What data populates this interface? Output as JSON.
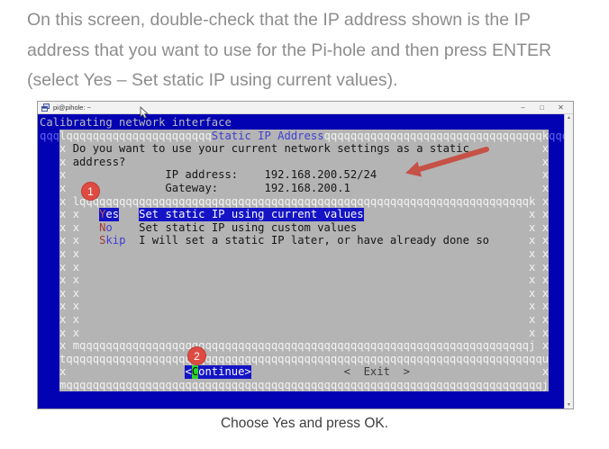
{
  "intro": {
    "lines": [
      "On this screen, double-check that the IP address shown is the IP",
      "address that you want to use for the Pi-hole and then press ENTER",
      "(select Yes – Set static IP using current values)."
    ]
  },
  "caption": "Choose Yes and press OK.",
  "window": {
    "title": "pi@pihole: ~",
    "controls": {
      "minimize": "–",
      "maximize": "□",
      "close": "✕"
    },
    "scrollbar": {
      "up": "▲",
      "down": "▼"
    }
  },
  "colors": {
    "terminal_blue": "#0202b2",
    "dialog_gray": "#b4b4b4",
    "highlight_blue": "#1414c6",
    "title_blue": "#3f3fd3",
    "hotkey_red": "#a43835",
    "cursor_green": "#2ed32e",
    "annotation_red": "#dd4b43"
  },
  "terminal": {
    "backtitle": "Calibrating network interface",
    "dialog_title": "Static IP Address",
    "question": "Do you want to use your current network settings as a static address?",
    "ip_label": "IP address:",
    "ip_value": "192.168.200.52/24",
    "gateway_label": "Gateway:",
    "gateway_value": "192.168.200.1",
    "options": [
      {
        "tag": "Yes",
        "desc": "Set static IP using current values",
        "selected": true
      },
      {
        "tag": "No",
        "desc": "Set static IP using custom values",
        "selected": false
      },
      {
        "tag": "Skip",
        "desc": "I will set a static IP later, or have already done so",
        "selected": false
      }
    ],
    "buttons": [
      "<Continue>",
      "<  Exit  >"
    ],
    "lines": [
      [
        {
          "t": "Calibrating network interface",
          "c": "g"
        }
      ],
      [
        {
          "t": "qqq",
          "c": "lb"
        },
        {
          "t": "l",
          "c": "bw"
        },
        {
          "q": 22,
          "c": "bw"
        },
        {
          "t": "Static IP Address",
          "c": "bt",
          "n": "dialog-title"
        },
        {
          "q": 33,
          "c": "bw"
        },
        {
          "t": "k",
          "c": "bw"
        },
        {
          "t": "qqq",
          "c": "lb"
        }
      ],
      [
        {
          "s": 3
        },
        {
          "t": "x",
          "c": "bw"
        },
        {
          "t": " Do you want to use your current network settings as a static",
          "c": "k"
        },
        {
          "s": 11,
          "c": "k"
        },
        {
          "t": "x",
          "c": "bw"
        }
      ],
      [
        {
          "s": 3
        },
        {
          "t": "x",
          "c": "bw"
        },
        {
          "t": " address?",
          "c": "k"
        },
        {
          "s": 63,
          "c": "k"
        },
        {
          "t": "x",
          "c": "bw"
        }
      ],
      [
        {
          "s": 3
        },
        {
          "t": "x",
          "c": "bw"
        },
        {
          "s": 15,
          "c": "k"
        },
        {
          "t": "IP address:",
          "c": "k"
        },
        {
          "s": 4,
          "c": "k"
        },
        {
          "t": "192.168.200.52/24",
          "c": "k",
          "n": "ip-address-value"
        },
        {
          "s": 25,
          "c": "k"
        },
        {
          "t": "x",
          "c": "bw"
        }
      ],
      [
        {
          "s": 3
        },
        {
          "t": "x",
          "c": "bw"
        },
        {
          "s": 15,
          "c": "k"
        },
        {
          "t": "Gateway:",
          "c": "k"
        },
        {
          "s": 7,
          "c": "k"
        },
        {
          "t": "192.168.200.1",
          "c": "k",
          "n": "gateway-value"
        },
        {
          "s": 29,
          "c": "k"
        },
        {
          "t": "x",
          "c": "bw"
        }
      ],
      [
        {
          "s": 3
        },
        {
          "t": "x",
          "c": "bw"
        },
        {
          "s": 1,
          "c": "k"
        },
        {
          "t": "l",
          "c": "bw"
        },
        {
          "q": 68,
          "c": "bw"
        },
        {
          "t": "k",
          "c": "bw"
        },
        {
          "s": 1,
          "c": "k"
        },
        {
          "t": "x",
          "c": "bw"
        }
      ],
      [
        {
          "s": 3
        },
        {
          "t": "x",
          "c": "bw"
        },
        {
          "s": 1,
          "c": "k"
        },
        {
          "t": "x",
          "c": "bw"
        },
        {
          "s": 3,
          "c": "k"
        },
        {
          "t": "Y",
          "c": "hr",
          "n": "menu-option-yes",
          "i": 1
        },
        {
          "t": "es",
          "c": "hw",
          "i": 1
        },
        {
          "s": 3,
          "c": "k"
        },
        {
          "t": "Set static IP using current values",
          "c": "hw",
          "n": "menu-option-yes-desc",
          "i": 1
        },
        {
          "s": 25,
          "c": "k"
        },
        {
          "t": "x",
          "c": "bw"
        },
        {
          "s": 1,
          "c": "k"
        },
        {
          "t": "x",
          "c": "bw"
        }
      ],
      [
        {
          "s": 3
        },
        {
          "t": "x",
          "c": "bw"
        },
        {
          "s": 1,
          "c": "k"
        },
        {
          "t": "x",
          "c": "bw"
        },
        {
          "s": 3,
          "c": "k"
        },
        {
          "t": "N",
          "c": "r",
          "n": "menu-option-no",
          "i": 1
        },
        {
          "t": "o",
          "c": "b",
          "i": 1
        },
        {
          "s": 4,
          "c": "k"
        },
        {
          "t": "Set static IP using custom values",
          "c": "k",
          "n": "menu-option-no-desc",
          "i": 1
        },
        {
          "s": 26,
          "c": "k"
        },
        {
          "t": "x",
          "c": "bw"
        },
        {
          "s": 1,
          "c": "k"
        },
        {
          "t": "x",
          "c": "bw"
        }
      ],
      [
        {
          "s": 3
        },
        {
          "t": "x",
          "c": "bw"
        },
        {
          "s": 1,
          "c": "k"
        },
        {
          "t": "x",
          "c": "bw"
        },
        {
          "s": 3,
          "c": "k"
        },
        {
          "t": "S",
          "c": "r",
          "n": "menu-option-skip",
          "i": 1
        },
        {
          "t": "kip",
          "c": "b",
          "i": 1
        },
        {
          "s": 2,
          "c": "k"
        },
        {
          "t": "I will set a static IP later, or have already done so",
          "c": "k",
          "n": "menu-option-skip-desc",
          "i": 1
        },
        {
          "s": 6,
          "c": "k"
        },
        {
          "t": "x",
          "c": "bw"
        },
        {
          "s": 1,
          "c": "k"
        },
        {
          "t": "x",
          "c": "bw"
        }
      ],
      [
        {
          "s": 3
        },
        {
          "t": "x",
          "c": "bw"
        },
        {
          "s": 1,
          "c": "k"
        },
        {
          "t": "x",
          "c": "bw"
        },
        {
          "s": 68,
          "c": "k"
        },
        {
          "t": "x",
          "c": "bw"
        },
        {
          "s": 1,
          "c": "k"
        },
        {
          "t": "x",
          "c": "bw"
        }
      ],
      [
        {
          "s": 3
        },
        {
          "t": "x",
          "c": "bw"
        },
        {
          "s": 1,
          "c": "k"
        },
        {
          "t": "x",
          "c": "bw"
        },
        {
          "s": 68,
          "c": "k"
        },
        {
          "t": "x",
          "c": "bw"
        },
        {
          "s": 1,
          "c": "k"
        },
        {
          "t": "x",
          "c": "bw"
        }
      ],
      [
        {
          "s": 3
        },
        {
          "t": "x",
          "c": "bw"
        },
        {
          "s": 1,
          "c": "k"
        },
        {
          "t": "x",
          "c": "bw"
        },
        {
          "s": 68,
          "c": "k"
        },
        {
          "t": "x",
          "c": "bw"
        },
        {
          "s": 1,
          "c": "k"
        },
        {
          "t": "x",
          "c": "bw"
        }
      ],
      [
        {
          "s": 3
        },
        {
          "t": "x",
          "c": "bw"
        },
        {
          "s": 1,
          "c": "k"
        },
        {
          "t": "x",
          "c": "bw"
        },
        {
          "s": 68,
          "c": "k"
        },
        {
          "t": "x",
          "c": "bw"
        },
        {
          "s": 1,
          "c": "k"
        },
        {
          "t": "x",
          "c": "bw"
        }
      ],
      [
        {
          "s": 3
        },
        {
          "t": "x",
          "c": "bw"
        },
        {
          "s": 1,
          "c": "k"
        },
        {
          "t": "x",
          "c": "bw"
        },
        {
          "s": 68,
          "c": "k"
        },
        {
          "t": "x",
          "c": "bw"
        },
        {
          "s": 1,
          "c": "k"
        },
        {
          "t": "x",
          "c": "bw"
        }
      ],
      [
        {
          "s": 3
        },
        {
          "t": "x",
          "c": "bw"
        },
        {
          "s": 1,
          "c": "k"
        },
        {
          "t": "x",
          "c": "bw"
        },
        {
          "s": 68,
          "c": "k"
        },
        {
          "t": "x",
          "c": "bw"
        },
        {
          "s": 1,
          "c": "k"
        },
        {
          "t": "x",
          "c": "bw"
        }
      ],
      [
        {
          "s": 3
        },
        {
          "t": "x",
          "c": "bw"
        },
        {
          "s": 1,
          "c": "k"
        },
        {
          "t": "x",
          "c": "bw"
        },
        {
          "s": 68,
          "c": "k"
        },
        {
          "t": "x",
          "c": "bw"
        },
        {
          "s": 1,
          "c": "k"
        },
        {
          "t": "x",
          "c": "bw"
        }
      ],
      [
        {
          "s": 3
        },
        {
          "t": "x",
          "c": "bw"
        },
        {
          "s": 1,
          "c": "k"
        },
        {
          "t": "m",
          "c": "bw"
        },
        {
          "q": 68,
          "c": "bw"
        },
        {
          "t": "j",
          "c": "bw"
        },
        {
          "s": 1,
          "c": "k"
        },
        {
          "t": "x",
          "c": "bw"
        }
      ],
      [
        {
          "s": 3
        },
        {
          "t": "t",
          "c": "bw"
        },
        {
          "q": 72,
          "c": "bw"
        },
        {
          "t": "u",
          "c": "bw"
        }
      ],
      [
        {
          "s": 3
        },
        {
          "t": "x",
          "c": "bw"
        },
        {
          "s": 18,
          "c": "k"
        },
        {
          "t": "<",
          "c": "hw",
          "n": "continue-button",
          "i": 1
        },
        {
          "t": "C",
          "c": "gn",
          "i": 1
        },
        {
          "t": "ontinue>",
          "c": "hw",
          "i": 1
        },
        {
          "s": 14,
          "c": "k"
        },
        {
          "t": "<  Exit  >",
          "c": "dm",
          "n": "exit-button",
          "i": 1
        },
        {
          "s": 20,
          "c": "k"
        },
        {
          "t": "x",
          "c": "bw"
        }
      ],
      [
        {
          "s": 3
        },
        {
          "t": "m",
          "c": "bw"
        },
        {
          "q": 72,
          "c": "bw"
        },
        {
          "t": "j",
          "c": "bw"
        }
      ],
      []
    ]
  },
  "annotations": {
    "step1": "1",
    "step2": "2"
  }
}
